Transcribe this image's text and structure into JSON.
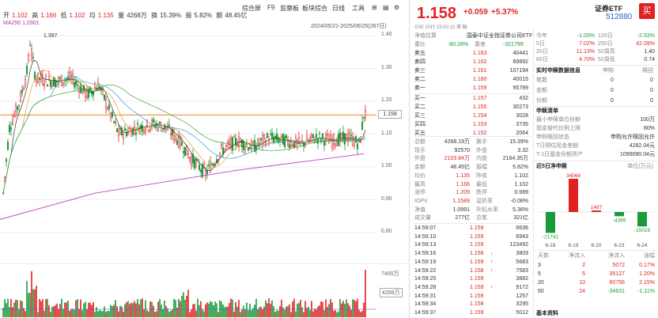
{
  "toolbar": {
    "tabs": [
      "综合屏",
      "F9",
      "监察板",
      "板块综合",
      "日线",
      "工具"
    ]
  },
  "legend": {
    "open_label": "开",
    "open": "1.102",
    "high_label": "高",
    "high": "1.166",
    "low_label": "低",
    "low": "1.102",
    "avg_label": "均",
    "avg": "1.135",
    "vol": "4268万",
    "turnover_label": "换",
    "turnover": "15.39%",
    "amp_label": "振",
    "amp": "5.82%",
    "amount_label": "额",
    "amount": "48.45亿",
    "ma_label": "MA250",
    "ma_value": "1.0301"
  },
  "date_range": "2024/05/21-2025/06/25(267日)",
  "price_axis": [
    "1.40",
    "1.30",
    "1.20",
    "1.10",
    "1.00",
    "0.90",
    "0.80"
  ],
  "high_marker": "1.397",
  "current_price_tag": "1.158",
  "volume_axis": [
    "7400万",
    "4268万"
  ],
  "quote": {
    "price": "1.158",
    "change": "+0.059",
    "change_pct": "+5.37%",
    "sub_info": "SSE  CNY  15:00:13  港  融",
    "name": "证券ETF",
    "code": "512880",
    "buy_label": "买"
  },
  "info_rows": [
    {
      "label": "净值估算",
      "value": "国泰中证全指证券公司ETF"
    },
    {
      "label": "委比",
      "value": "-80.28%",
      "label2": "委差",
      "value2": "-321799"
    }
  ],
  "asks": [
    {
      "label": "卖五",
      "price": "1.163",
      "vol": "40441"
    },
    {
      "label": "卖四",
      "price": "1.162",
      "vol": "69892"
    },
    {
      "label": "卖三",
      "price": "1.161",
      "vol": "107194"
    },
    {
      "label": "卖二",
      "price": "1.160",
      "vol": "40015"
    },
    {
      "label": "卖一",
      "price": "1.159",
      "vol": "95789"
    }
  ],
  "bids": [
    {
      "label": "买一",
      "price": "1.157",
      "vol": "432"
    },
    {
      "label": "买二",
      "price": "1.155",
      "vol": "30273"
    },
    {
      "label": "买三",
      "price": "1.154",
      "vol": "3028"
    },
    {
      "label": "买四",
      "price": "1.153",
      "vol": "3735"
    },
    {
      "label": "买五",
      "price": "1.152",
      "vol": "2064"
    }
  ],
  "stats": [
    {
      "l1": "总额",
      "v1": "4268.19万",
      "l2": "换手",
      "v2": "15.39%"
    },
    {
      "l1": "现手",
      "v1": "92570",
      "l2": "外盘",
      "v2": "3.32"
    },
    {
      "l1": "外盘",
      "v1": "2103.84万",
      "l2": "内盘",
      "v2": "2164.35万"
    },
    {
      "l1": "金额",
      "v1": "48.45亿",
      "l2": "振幅",
      "v2": "5.82%"
    },
    {
      "l1": "均价",
      "v1": "1.135",
      "l2": "昨收",
      "v2": "1.102"
    },
    {
      "l1": "最高",
      "v1": "1.166",
      "l2": "最低",
      "v2": "1.102"
    },
    {
      "l1": "涨停",
      "v1": "1.209",
      "l2": "跌停",
      "v2": "0.989"
    },
    {
      "l1": "IOPV",
      "v1": "1.1589",
      "l2": "溢折率",
      "v2": "-0.08%"
    },
    {
      "l1": "净值",
      "v1": "1.0991",
      "l2": "升贴水率",
      "v2": "5.36%"
    },
    {
      "l1": "成交量",
      "v1": "277亿",
      "l2": "总笔",
      "v2": "321亿"
    }
  ],
  "ticks": [
    {
      "time": "14:59:07",
      "price": "1.159",
      "vol": "6636",
      "dir": ""
    },
    {
      "time": "14:59:10",
      "price": "1.159",
      "vol": "6943",
      "dir": ""
    },
    {
      "time": "14:59:13",
      "price": "1.159",
      "vol": "123492",
      "dir": ""
    },
    {
      "time": "14:59:16",
      "price": "1.158",
      "vol": "3803",
      "dir": "↓"
    },
    {
      "time": "14:59:19",
      "price": "1.159",
      "vol": "5683",
      "dir": "↑"
    },
    {
      "time": "14:59:22",
      "price": "1.158",
      "vol": "7583",
      "dir": "↑"
    },
    {
      "time": "14:59:25",
      "price": "1.159",
      "vol": "3882",
      "dir": ""
    },
    {
      "time": "14:59:28",
      "price": "1.159",
      "vol": "9172",
      "dir": "↑"
    },
    {
      "time": "14:59:31",
      "price": "1.159",
      "vol": "1257",
      "dir": ""
    },
    {
      "time": "14:59:34",
      "price": "1.158",
      "vol": "3295",
      "dir": ""
    },
    {
      "time": "14:59:37",
      "price": "1.159",
      "vol": "5012",
      "dir": ""
    }
  ],
  "periods": [
    {
      "l1": "今年",
      "v1": "-1.03%",
      "l2": "120日",
      "v2": "-2.53%"
    },
    {
      "l1": "5日",
      "v1": "7.02%",
      "l2": "250日",
      "v2": "42.09%"
    },
    {
      "l1": "20日",
      "v1": "11.13%",
      "l2": "52周高",
      "v2": "1.40"
    },
    {
      "l1": "60日",
      "v1": "4.70%",
      "l2": "52周低",
      "v2": "0.74"
    }
  ],
  "realtime_title": "实时申赎数据信息",
  "realtime_headers": [
    "",
    "申购",
    "赎回"
  ],
  "realtime_rows": [
    {
      "label": "笔数",
      "v1": "0",
      "v2": "0"
    },
    {
      "label": "金额",
      "v1": "0",
      "v2": "0"
    },
    {
      "label": "份额",
      "v1": "0",
      "v2": "0"
    }
  ],
  "subscribe_title": "申赎清单",
  "subscribe_rows": [
    {
      "label": "最小申赎单位份额",
      "value": "100万"
    },
    {
      "label": "现金替代比例上限",
      "value": "80%"
    },
    {
      "label": "申购赎回状态",
      "value": "申购允许赎回允许"
    },
    {
      "label": "T日预估现金差额",
      "value": "4282.04元"
    },
    {
      "label": "T-1日基金份额资产",
      "value": "1099090.04元"
    }
  ],
  "flow_title": "近5日净申赎",
  "flow_unit": "单位(万元)",
  "chart_data": {
    "type": "bar",
    "categories": [
      "6-18",
      "6-19",
      "6-20",
      "6-23",
      "6-24"
    ],
    "values": [
      -21742,
      34568,
      1487,
      -4369,
      -15016
    ],
    "value_labels": [
      "-21742",
      "34568",
      "1487",
      "-4369",
      "-15016"
    ]
  },
  "flow_table": {
    "headers": [
      "天数",
      "净流入",
      "净流入",
      "涨幅"
    ],
    "rows": [
      {
        "d": "3",
        "a": "2",
        "b": "5072",
        "c": "0.17%"
      },
      {
        "d": "5",
        "a": "5",
        "b": "35127",
        "c": "1.20%"
      },
      {
        "d": "20",
        "a": "10",
        "b": "60756",
        "c": "2.15%"
      },
      {
        "d": "60",
        "a": "24",
        "b": "-34631",
        "c": "-1.11%"
      }
    ]
  },
  "basic_info_title": "基本资料"
}
